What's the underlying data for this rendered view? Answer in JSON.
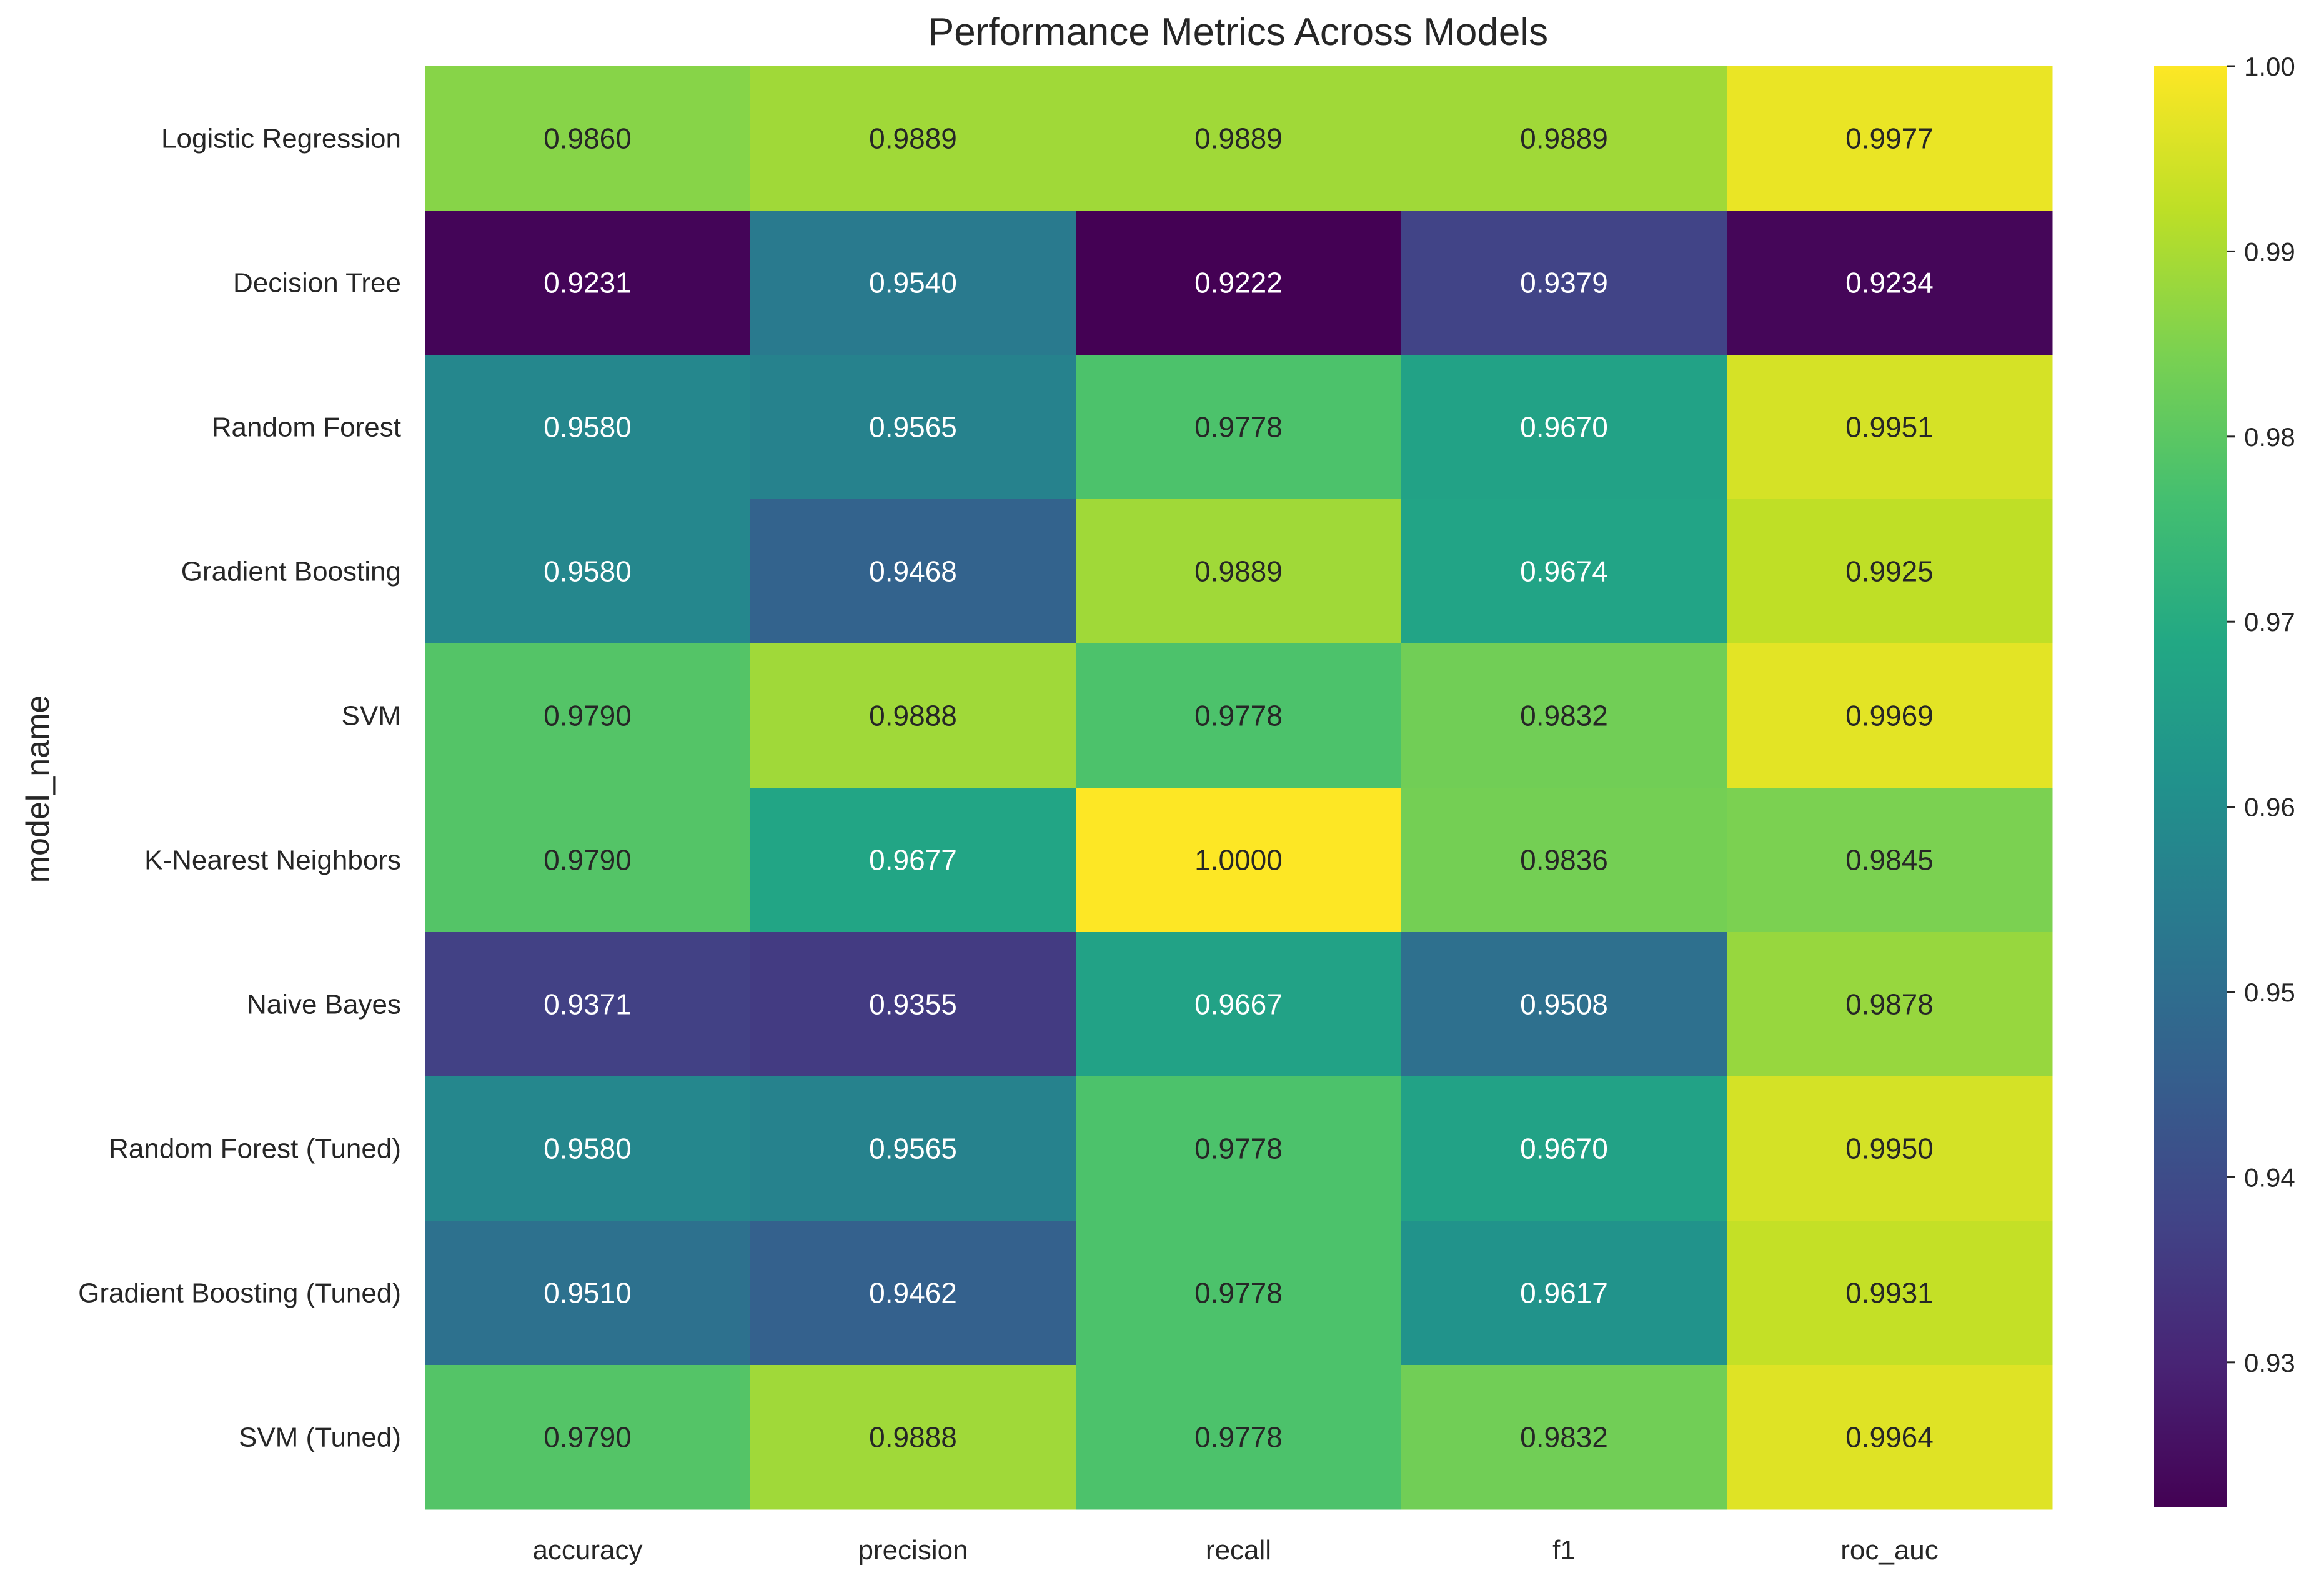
{
  "chart_data": {
    "type": "heatmap",
    "title": "Performance Metrics Across Models",
    "xlabel": "",
    "ylabel": "model_name",
    "columns": [
      "accuracy",
      "precision",
      "recall",
      "f1",
      "roc_auc"
    ],
    "rows": [
      "Logistic Regression",
      "Decision Tree",
      "Random Forest",
      "Gradient Boosting",
      "SVM",
      "K-Nearest Neighbors",
      "Naive Bayes",
      "Random Forest (Tuned)",
      "Gradient Boosting (Tuned)",
      "SVM (Tuned)"
    ],
    "values": [
      [
        0.986,
        0.9889,
        0.9889,
        0.9889,
        0.9977
      ],
      [
        0.9231,
        0.954,
        0.9222,
        0.9379,
        0.9234
      ],
      [
        0.958,
        0.9565,
        0.9778,
        0.967,
        0.9951
      ],
      [
        0.958,
        0.9468,
        0.9889,
        0.9674,
        0.9925
      ],
      [
        0.979,
        0.9888,
        0.9778,
        0.9832,
        0.9969
      ],
      [
        0.979,
        0.9677,
        1.0,
        0.9836,
        0.9845
      ],
      [
        0.9371,
        0.9355,
        0.9667,
        0.9508,
        0.9878
      ],
      [
        0.958,
        0.9565,
        0.9778,
        0.967,
        0.995
      ],
      [
        0.951,
        0.9462,
        0.9778,
        0.9617,
        0.9931
      ],
      [
        0.979,
        0.9888,
        0.9778,
        0.9832,
        0.9964
      ]
    ],
    "value_format_decimals": 4,
    "colormap": "viridis",
    "vmin": 0.9222,
    "vmax": 1.0,
    "colorbar_ticks": [
      "0.93",
      "0.94",
      "0.95",
      "0.96",
      "0.97",
      "0.98",
      "0.99",
      "1.00"
    ],
    "colorbar_tick_values": [
      0.93,
      0.94,
      0.95,
      0.96,
      0.97,
      0.98,
      0.99,
      1.0
    ],
    "grid": false,
    "colorbar_position": "right"
  }
}
